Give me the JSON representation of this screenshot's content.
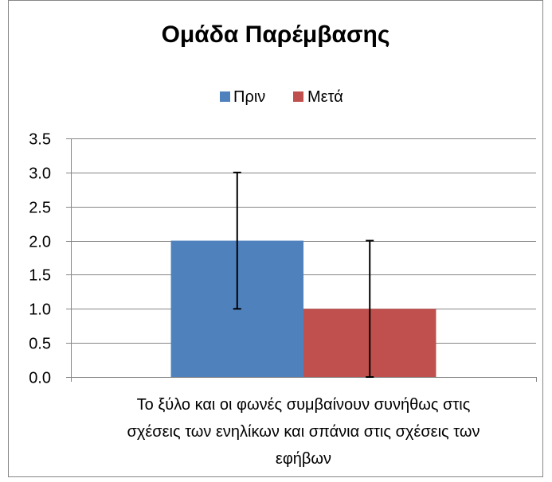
{
  "chart_data": {
    "type": "bar",
    "title": "Ομάδα Παρέμβασης",
    "category_label_lines": [
      "Το ξύλο και οι φωνές συμβαίνουν συνήθως στις",
      "σχέσεις των ενηλίκων και σπάνια στις σχέσεις των",
      "εφήβων"
    ],
    "categories": [
      "Το ξύλο και οι φωνές συμβαίνουν συνήθως στις σχέσεις των ενηλίκων και σπάνια στις σχέσεις των εφήβων"
    ],
    "series": [
      {
        "name": "Πριν",
        "values": [
          2.0
        ],
        "error": [
          1.0
        ],
        "color": "#4f81bd"
      },
      {
        "name": "Μετά",
        "values": [
          1.0
        ],
        "error": [
          1.0
        ],
        "color": "#c0504d"
      }
    ],
    "ylim": [
      0,
      3.5
    ],
    "yticks": [
      "0.0",
      "0.5",
      "1.0",
      "1.5",
      "2.0",
      "2.5",
      "3.0",
      "3.5"
    ],
    "grid": true,
    "legend_position": "top"
  }
}
